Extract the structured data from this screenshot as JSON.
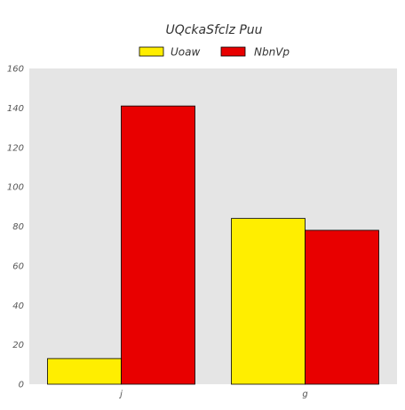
{
  "chart_data": {
    "type": "bar",
    "title": "UQckaSfclz Puu",
    "categories": [
      "j",
      "g"
    ],
    "series": [
      {
        "name": "Uoaw",
        "values": [
          13,
          84
        ],
        "color": "#ffee00"
      },
      {
        "name": "NbnVp",
        "values": [
          141,
          78
        ],
        "color": "#e80000"
      }
    ],
    "xlabel": "",
    "ylabel": "",
    "ylim": [
      0,
      160
    ],
    "yticks": [
      0,
      20,
      40,
      60,
      80,
      100,
      120,
      140,
      160
    ],
    "grid": false,
    "legend": "top-center",
    "plot_background": "#e5e5e5",
    "bar_edge_color": "#000000"
  }
}
